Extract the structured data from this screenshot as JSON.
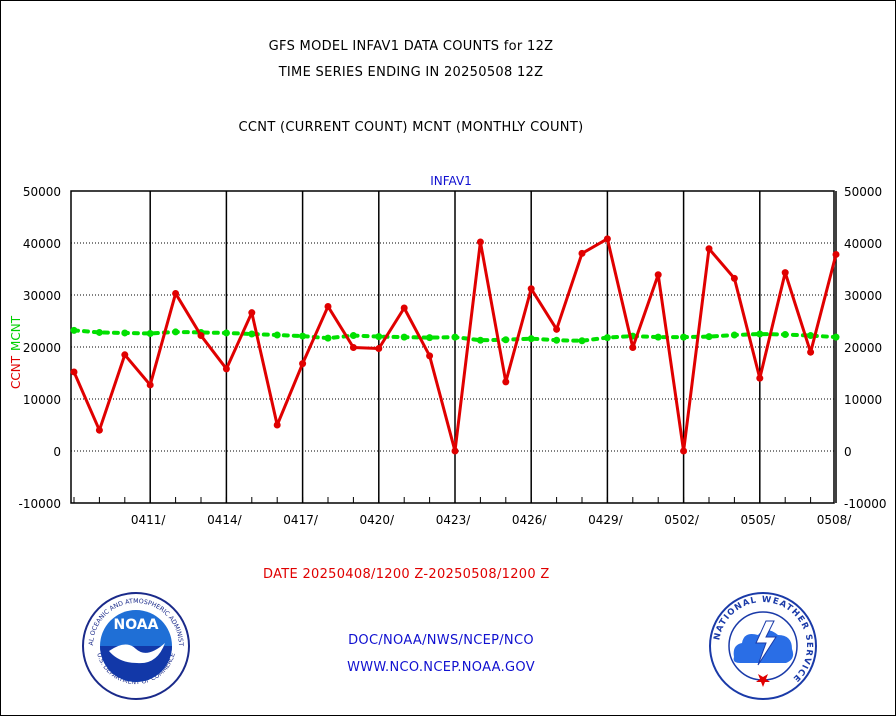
{
  "chart_data": {
    "type": "line",
    "title_lines": [
      "GFS MODEL INFAV1 DATA COUNTS for 12Z",
      "TIME SERIES ENDING IN 20250508 12Z"
    ],
    "subtitle": "CCNT (CURRENT COUNT) MCNT (MONTHLY COUNT)",
    "plot_label": "INFAV1",
    "ylabel_current": "CCNT",
    "ylabel_monthly": "MCNT",
    "xlabel": "DATE 20250408/1200 Z-20250508/1200 Z",
    "ylim": [
      -10000,
      50000
    ],
    "y_ticks": [
      "50000",
      "40000",
      "30000",
      "20000",
      "10000",
      "0",
      "-10000"
    ],
    "x_ticks": [
      "0411/",
      "0414/",
      "0417/",
      "0420/",
      "0423/",
      "0426/",
      "0429/",
      "0502/",
      "0505/",
      "0508/"
    ],
    "x": [
      "0408",
      "0409",
      "0410",
      "0411",
      "0412",
      "0413",
      "0414",
      "0415",
      "0416",
      "0417",
      "0418",
      "0419",
      "0420",
      "0421",
      "0422",
      "0423",
      "0424",
      "0425",
      "0426",
      "0427",
      "0428",
      "0429",
      "0430",
      "0501",
      "0502",
      "0503",
      "0504",
      "0505",
      "0506",
      "0507",
      "0508"
    ],
    "series": [
      {
        "name": "CCNT",
        "color": "#e00000",
        "values": [
          15200,
          4000,
          18500,
          12700,
          30300,
          22200,
          15800,
          26600,
          5000,
          16800,
          27800,
          19900,
          19700,
          27500,
          18300,
          0,
          40200,
          13300,
          31200,
          23400,
          38000,
          40800,
          19900,
          33900,
          0,
          38900,
          33200,
          14000,
          34300,
          19000,
          37800
        ]
      },
      {
        "name": "MCNT",
        "color": "#00e000",
        "values": [
          23200,
          22800,
          22700,
          22600,
          22900,
          22800,
          22700,
          22500,
          22300,
          22100,
          21700,
          22200,
          22000,
          21900,
          21800,
          21900,
          21300,
          21400,
          21600,
          21300,
          21200,
          21800,
          22100,
          21900,
          21900,
          22000,
          22300,
          22500,
          22400,
          22200,
          21900
        ]
      }
    ]
  },
  "footer": {
    "line1": "DOC/NOAA/NWS/NCEP/NCO",
    "line2": "WWW.NCO.NCEP.NOAA.GOV"
  },
  "logos": {
    "noaa_text": "NOAA",
    "noaa_ring": "NATIONAL OCEANIC AND ATMOSPHERIC ADMINISTRATION",
    "noaa_ring_bottom": "U.S. DEPARTMENT OF COMMERCE",
    "nws_ring": "NATIONAL WEATHER SERVICE"
  }
}
